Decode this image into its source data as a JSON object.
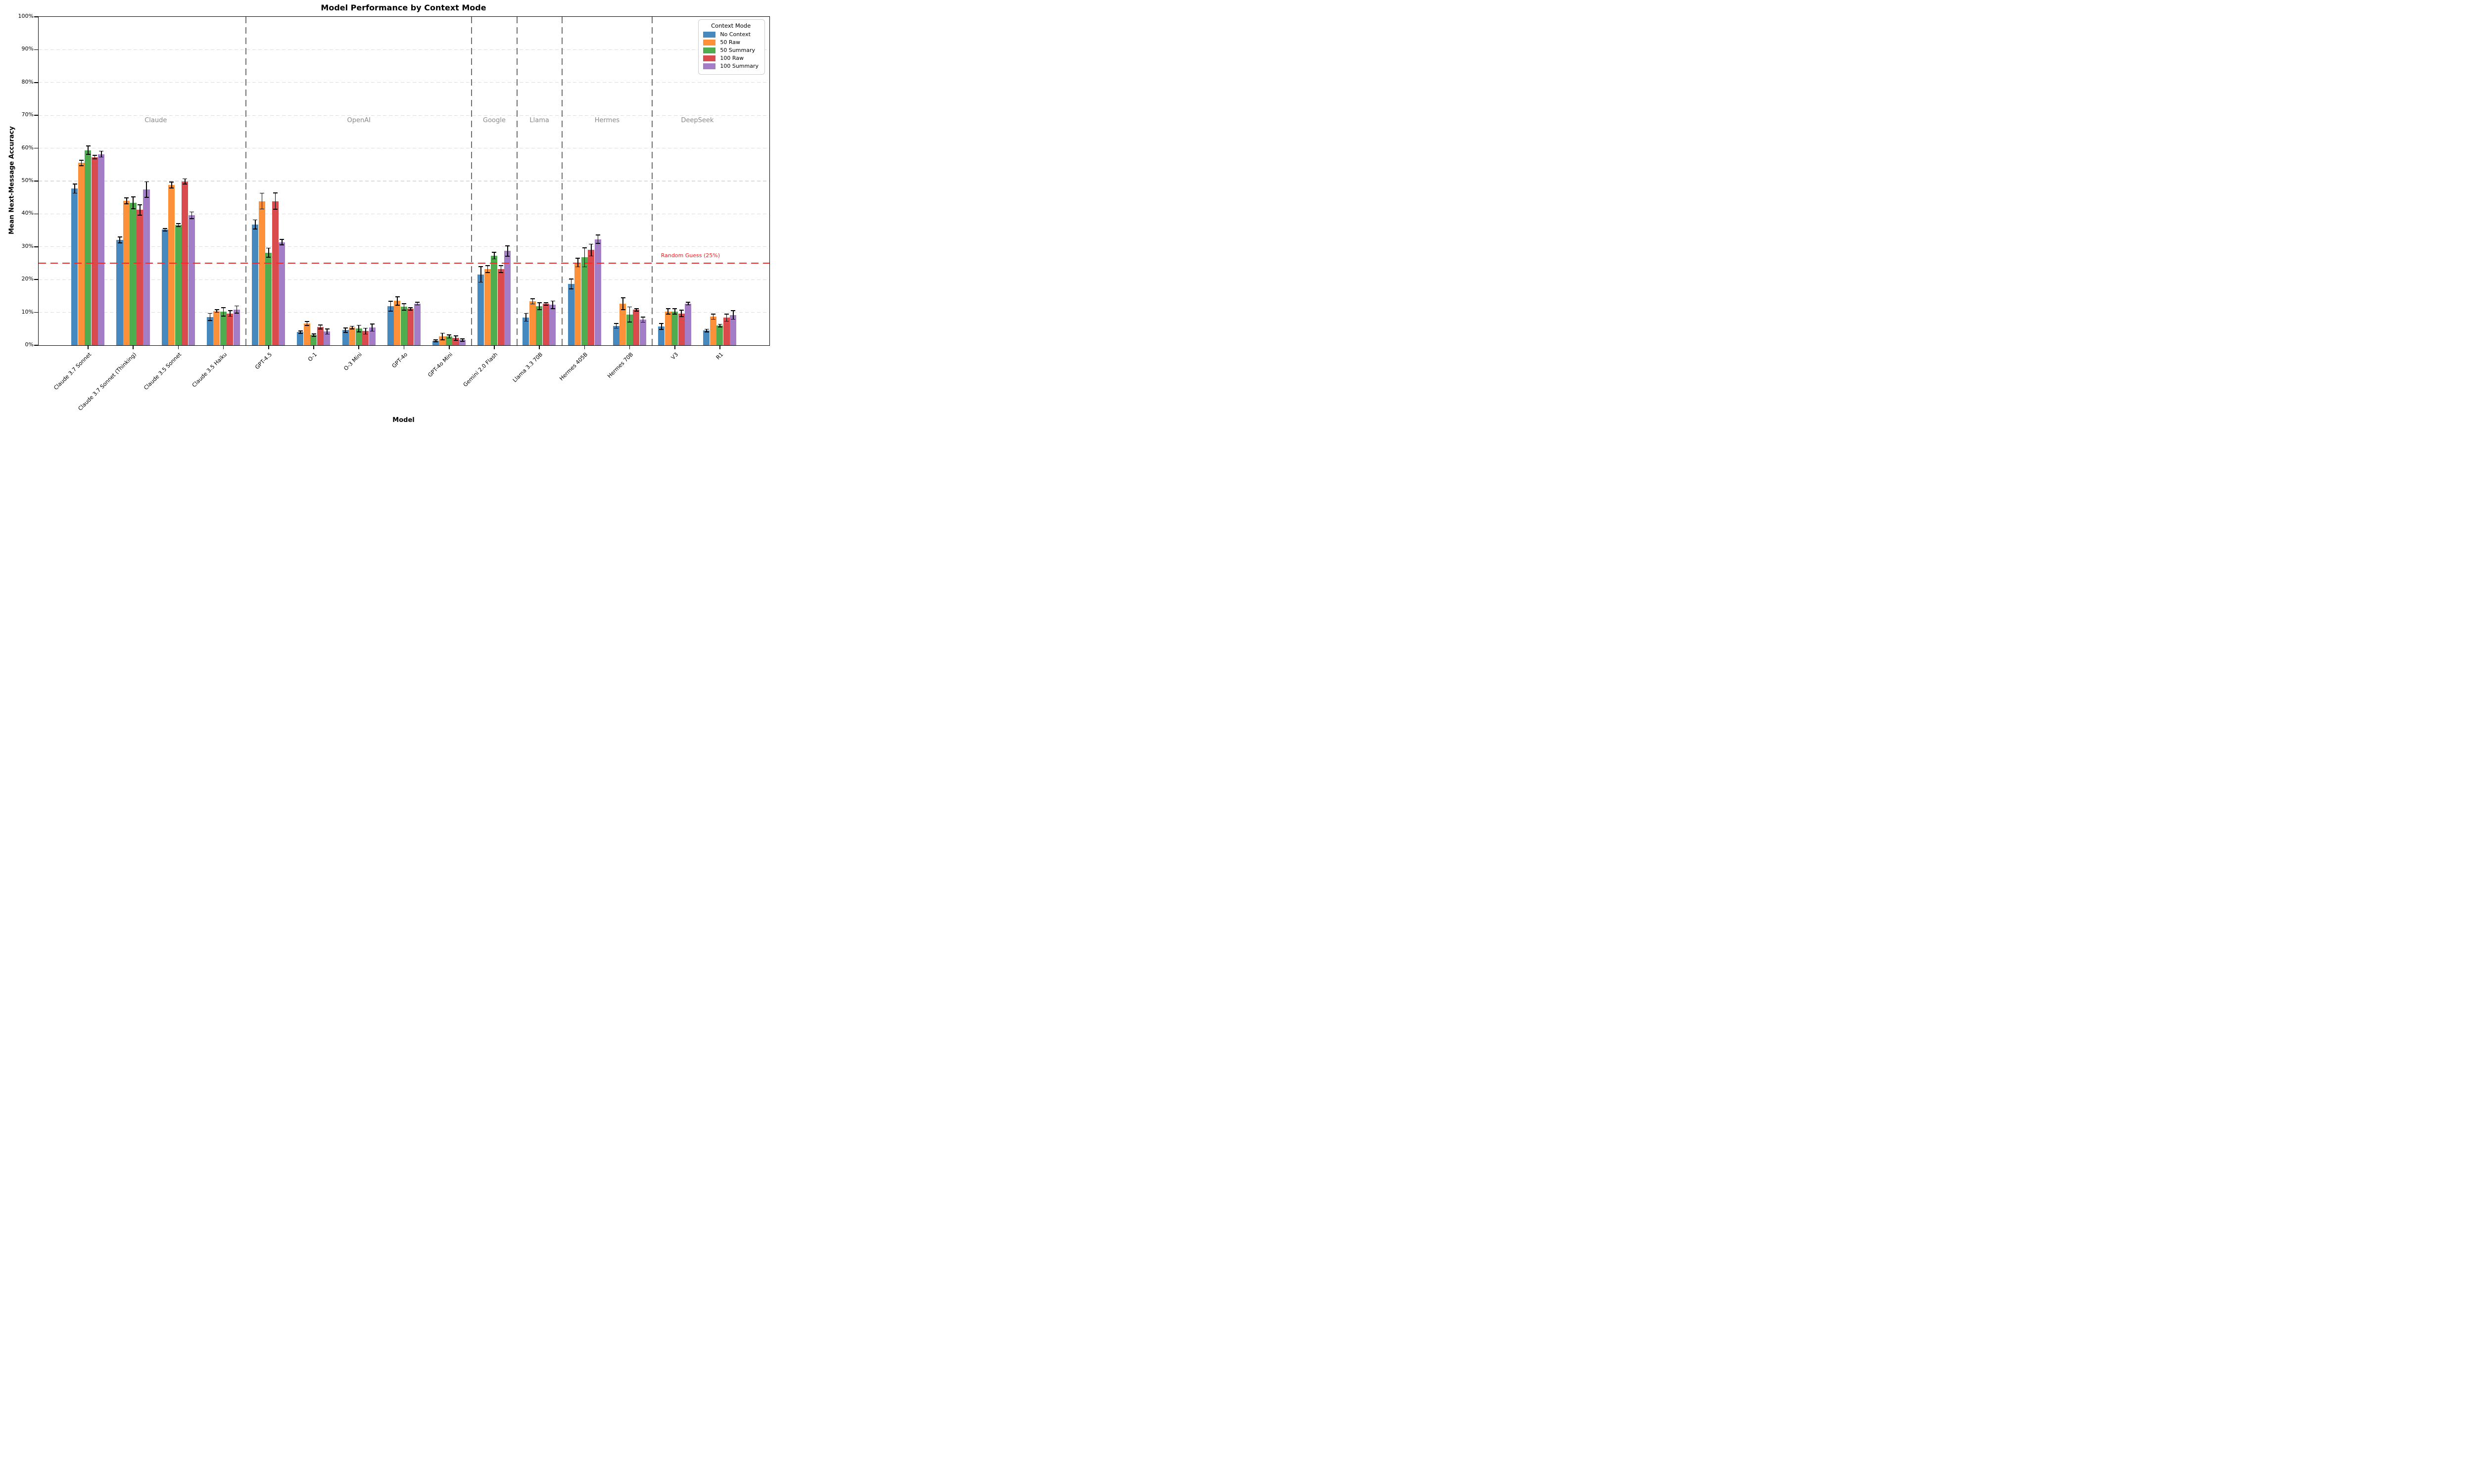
{
  "chart_data": {
    "type": "bar",
    "title": "Model Performance by Context Mode",
    "xlabel": "Model",
    "ylabel": "Mean Next-Message Accuracy",
    "ylim": [
      0,
      100
    ],
    "ytick_labels": [
      "0%",
      "10%",
      "20%",
      "30%",
      "40%",
      "50%",
      "60%",
      "70%",
      "80%",
      "90%",
      "100%"
    ],
    "grid": "horizontal-dashed",
    "legend_title": "Context Mode",
    "legend_position": "upper right",
    "categories": [
      "Claude 3.7 Sonnet",
      "Claude 3.7 Sonnet (Thinking)",
      "Claude 3.5 Sonnet",
      "Claude 3.5 Haiku",
      "GPT-4.5",
      "O-1",
      "O-3 Mini",
      "GPT-4o",
      "GPT-4o Mini",
      "Gemini 2.0 Flash",
      "Llama 3.3 70B",
      "Hermes 405B",
      "Hermes 70B",
      "V3",
      "R1"
    ],
    "vendor_groups": [
      {
        "label": "Claude",
        "from": 0,
        "to": 3
      },
      {
        "label": "OpenAI",
        "from": 4,
        "to": 8
      },
      {
        "label": "Google",
        "from": 9,
        "to": 9
      },
      {
        "label": "Llama",
        "from": 10,
        "to": 10
      },
      {
        "label": "Hermes",
        "from": 11,
        "to": 12
      },
      {
        "label": "DeepSeek",
        "from": 13,
        "to": 14
      }
    ],
    "series": [
      {
        "name": "No Context",
        "color": "#4589BE",
        "values": [
          47.7,
          32.1,
          35.2,
          8.6,
          36.8,
          4.0,
          4.6,
          11.9,
          1.4,
          21.6,
          8.5,
          18.7,
          5.9,
          5.7,
          4.5
        ],
        "errors": [
          1.4,
          0.9,
          0.4,
          1.1,
          1.4,
          0.4,
          0.7,
          1.5,
          0.3,
          2.4,
          1.2,
          1.5,
          0.7,
          0.9,
          0.4
        ]
      },
      {
        "name": "50 Raw",
        "color": "#FD9139",
        "values": [
          55.5,
          44.0,
          48.8,
          10.4,
          43.9,
          6.6,
          5.4,
          13.5,
          2.7,
          23.2,
          13.4,
          25.2,
          12.7,
          10.3,
          8.7
        ],
        "errors": [
          0.8,
          0.9,
          0.9,
          0.4,
          2.4,
          0.6,
          0.4,
          1.3,
          1.0,
          1.1,
          0.8,
          1.3,
          1.8,
          0.8,
          0.8
        ]
      },
      {
        "name": "50 Summary",
        "color": "#4FAC4F",
        "values": [
          59.4,
          43.4,
          36.6,
          10.2,
          28.2,
          3.1,
          5.1,
          11.7,
          2.7,
          27.3,
          11.9,
          26.8,
          9.4,
          10.3,
          6.0
        ],
        "errors": [
          1.3,
          1.8,
          0.5,
          1.3,
          1.4,
          0.4,
          1.0,
          1.0,
          0.5,
          1.0,
          1.1,
          2.9,
          2.3,
          0.8,
          0.4
        ]
      },
      {
        "name": "100 Raw",
        "color": "#D94B4C",
        "values": [
          57.3,
          41.2,
          49.9,
          9.7,
          43.9,
          5.6,
          4.3,
          11.1,
          2.2,
          23.2,
          12.6,
          29.0,
          10.8,
          9.7,
          8.4
        ],
        "errors": [
          0.5,
          1.6,
          0.8,
          0.9,
          2.5,
          0.6,
          0.9,
          0.4,
          0.7,
          1.1,
          0.4,
          1.8,
          0.4,
          1.0,
          1.1
        ]
      },
      {
        "name": "100 Summary",
        "color": "#A37EC6",
        "values": [
          58.2,
          47.4,
          39.6,
          10.9,
          31.4,
          4.2,
          5.4,
          12.7,
          1.6,
          28.7,
          12.3,
          32.3,
          7.8,
          12.7,
          9.2
        ],
        "errors": [
          0.9,
          2.4,
          1.0,
          1.1,
          0.8,
          0.8,
          1.1,
          0.4,
          0.4,
          1.6,
          1.2,
          1.3,
          0.8,
          0.4,
          1.3
        ]
      }
    ],
    "reference_line": {
      "value": 25,
      "label": "Random Guess (25%)",
      "color": "#ff2222"
    }
  }
}
